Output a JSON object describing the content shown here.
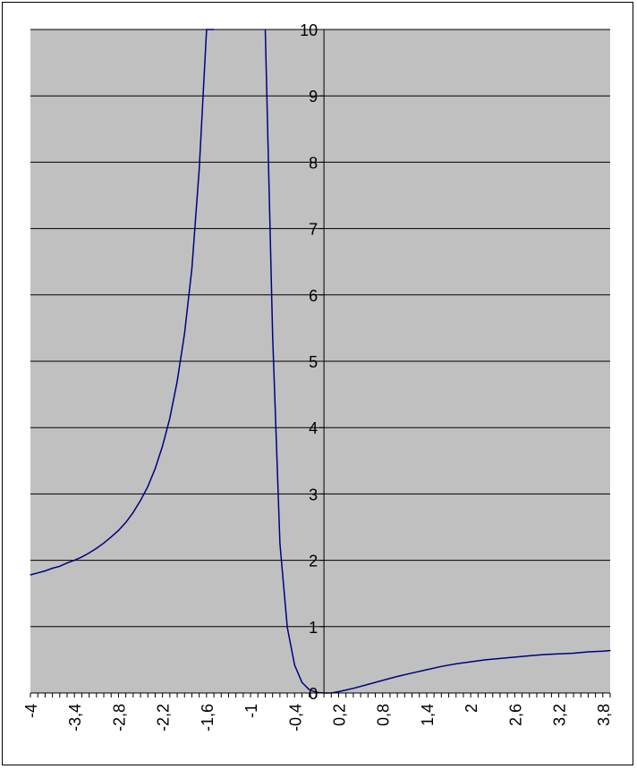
{
  "chart_data": {
    "type": "line",
    "title": "",
    "xlabel": "",
    "ylabel": "",
    "xlim": [
      -4,
      3.9
    ],
    "ylim": [
      0,
      10
    ],
    "grid": true,
    "legend": "none",
    "colors": {
      "plot_area": "#c0c0c0",
      "line": "#000080",
      "grid": "#000000",
      "axis": "#000000"
    },
    "y_ticks": [
      0,
      1,
      2,
      3,
      4,
      5,
      6,
      7,
      8,
      9,
      10
    ],
    "y_tick_labels": [
      "0",
      "1",
      "2",
      "3",
      "4",
      "5",
      "6",
      "7",
      "8",
      "9",
      "10"
    ],
    "x_tick_labels": [
      {
        "value": -4,
        "label": "-4"
      },
      {
        "value": -3.4,
        "label": "-3,4"
      },
      {
        "value": -2.8,
        "label": "-2,8"
      },
      {
        "value": -2.2,
        "label": "-2,2"
      },
      {
        "value": -1.6,
        "label": "-1,6"
      },
      {
        "value": -1,
        "label": "-1"
      },
      {
        "value": -0.4,
        "label": "-0,4"
      },
      {
        "value": 0.2,
        "label": "0,2"
      },
      {
        "value": 0.8,
        "label": "0,8"
      },
      {
        "value": 1.4,
        "label": "1,4"
      },
      {
        "value": 2,
        "label": "2"
      },
      {
        "value": 2.6,
        "label": "2,6"
      },
      {
        "value": 3.2,
        "label": "3,2"
      },
      {
        "value": 3.8,
        "label": "3,8"
      }
    ],
    "series": [
      {
        "x": [
          -4,
          -3.9,
          -3.8,
          -3.7,
          -3.6,
          -3.5,
          -3.4,
          -3.3,
          -3.2,
          -3.1,
          -3.0,
          -2.9,
          -2.8,
          -2.7,
          -2.6,
          -2.5,
          -2.4,
          -2.3,
          -2.2,
          -2.1,
          -2.0,
          -1.9,
          -1.8,
          -1.7,
          -1.6,
          -1.5
        ],
        "values": [
          1.78,
          1.81,
          1.84,
          1.88,
          1.91,
          1.96,
          2.0,
          2.05,
          2.11,
          2.18,
          2.26,
          2.35,
          2.45,
          2.57,
          2.72,
          2.9,
          3.11,
          3.38,
          3.72,
          4.14,
          4.7,
          5.42,
          6.4,
          7.9,
          10.0,
          10.0
        ]
      },
      {
        "x": [
          -0.8,
          -0.7,
          -0.6,
          -0.5,
          -0.4,
          -0.3,
          -0.2,
          -0.1,
          0.0,
          0.1,
          0.2,
          0.4,
          0.6,
          0.8,
          1.0,
          1.2,
          1.4,
          1.6,
          1.8,
          2.0,
          2.2,
          2.4,
          2.6,
          2.8,
          3.0,
          3.2,
          3.4,
          3.6,
          3.8,
          3.9
        ],
        "values": [
          10.0,
          5.4,
          2.25,
          0.99,
          0.42,
          0.16,
          0.05,
          0.01,
          0.0,
          0.0,
          0.02,
          0.07,
          0.13,
          0.19,
          0.25,
          0.3,
          0.35,
          0.4,
          0.44,
          0.47,
          0.5,
          0.52,
          0.54,
          0.56,
          0.58,
          0.59,
          0.6,
          0.62,
          0.63,
          0.64
        ]
      }
    ]
  }
}
